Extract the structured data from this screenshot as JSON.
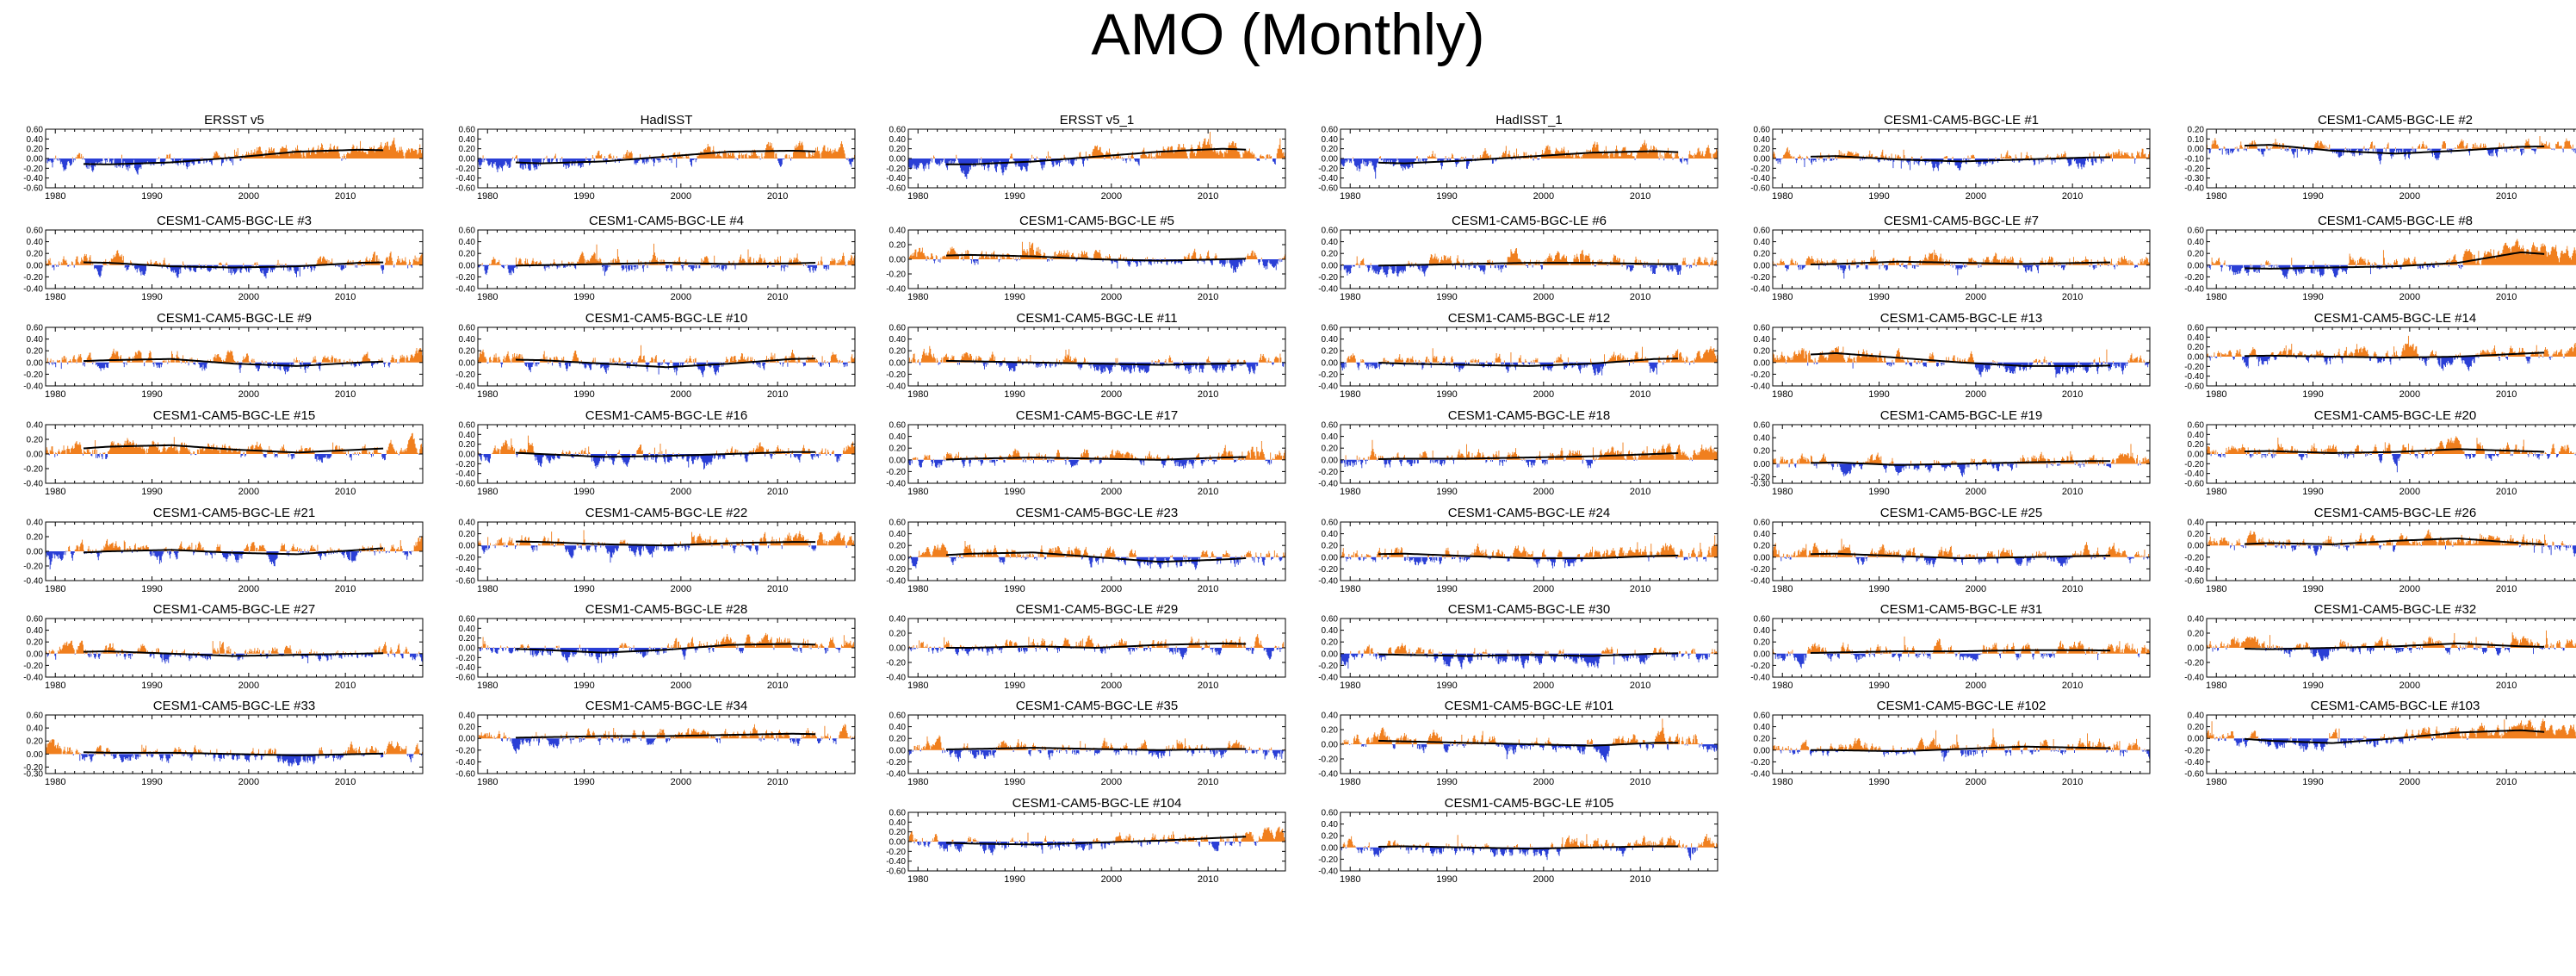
{
  "chart_data": {
    "type": "bar",
    "title": "AMO (Monthly)",
    "xlabel": "",
    "ylabel": "",
    "x_range": [
      1979,
      2018
    ],
    "x_ticks": [
      "1980",
      "1990",
      "2000",
      "2010"
    ],
    "colors": {
      "positive": "#f07f1e",
      "negative": "#2a3fd6",
      "smooth": "#000000"
    },
    "panels": [
      {
        "name": "ERSST v5",
        "seed": 1,
        "ylim": [
          -0.6,
          0.6
        ],
        "yticks": [
          "0.60",
          "0.40",
          "0.20",
          "0.00",
          "-0.20",
          "-0.40",
          "-0.60"
        ],
        "trend": [
          -0.1,
          -0.12,
          -0.08,
          0.02,
          0.14,
          0.18,
          0.15
        ]
      },
      {
        "name": "HadISST",
        "seed": 2,
        "ylim": [
          -0.6,
          0.6
        ],
        "yticks": [
          "0.60",
          "0.40",
          "0.20",
          "0.00",
          "-0.20",
          "-0.40",
          "-0.60"
        ],
        "trend": [
          -0.05,
          -0.1,
          -0.06,
          0.04,
          0.14,
          0.16,
          0.12
        ]
      },
      {
        "name": "ERSST v5_1",
        "seed": 3,
        "ylim": [
          -0.6,
          0.6
        ],
        "yticks": [
          "0.60",
          "0.40",
          "0.20",
          "0.00",
          "-0.20",
          "-0.40",
          "-0.60"
        ],
        "trend": [
          -0.12,
          -0.12,
          -0.06,
          0.04,
          0.14,
          0.2,
          0.15
        ]
      },
      {
        "name": "HadISST_1",
        "seed": 4,
        "ylim": [
          -0.6,
          0.6
        ],
        "yticks": [
          "0.60",
          "0.40",
          "0.20",
          "0.00",
          "-0.20",
          "-0.40",
          "-0.60"
        ],
        "trend": [
          -0.06,
          -0.1,
          -0.04,
          0.04,
          0.12,
          0.15,
          0.1
        ]
      },
      {
        "name": "CESM1-CAM5-BGC-LE #1",
        "seed": 5,
        "ylim": [
          -0.6,
          0.6
        ],
        "yticks": [
          "0.60",
          "0.40",
          "0.20",
          "0.00",
          "-0.20",
          "-0.40",
          "-0.60"
        ],
        "trend": [
          0.02,
          0.05,
          -0.02,
          -0.06,
          -0.02,
          0.02,
          0.04
        ]
      },
      {
        "name": "CESM1-CAM5-BGC-LE #2",
        "seed": 6,
        "ylim": [
          -0.4,
          0.2
        ],
        "yticks": [
          "0.20",
          "0.10",
          "0.00",
          "-0.10",
          "-0.20",
          "-0.30",
          "-0.40"
        ],
        "trend": [
          0.02,
          0.04,
          -0.02,
          -0.05,
          -0.02,
          0.02,
          0.03
        ]
      },
      {
        "name": "CESM1-CAM5-BGC-LE #3",
        "seed": 7,
        "ylim": [
          -0.4,
          0.6
        ],
        "yticks": [
          "0.60",
          "0.40",
          "0.20",
          "0.00",
          "-0.20",
          "-0.40"
        ],
        "trend": [
          0.06,
          0.04,
          -0.02,
          -0.04,
          -0.02,
          0.04,
          0.06
        ]
      },
      {
        "name": "CESM1-CAM5-BGC-LE #4",
        "seed": 8,
        "ylim": [
          -0.4,
          0.6
        ],
        "yticks": [
          "0.60",
          "0.40",
          "0.20",
          "0.00",
          "-0.20",
          "-0.40"
        ],
        "trend": [
          -0.02,
          0.0,
          0.02,
          0.04,
          0.02,
          0.03,
          0.06
        ]
      },
      {
        "name": "CESM1-CAM5-BGC-LE #5",
        "seed": 9,
        "ylim": [
          -0.4,
          0.4
        ],
        "yticks": [
          "0.40",
          "0.20",
          "0.00",
          "-0.20",
          "-0.40"
        ],
        "trend": [
          0.04,
          0.06,
          0.04,
          0.0,
          -0.02,
          0.0,
          0.02
        ]
      },
      {
        "name": "CESM1-CAM5-BGC-LE #6",
        "seed": 10,
        "ylim": [
          -0.4,
          0.6
        ],
        "yticks": [
          "0.60",
          "0.40",
          "0.20",
          "0.00",
          "-0.20",
          "-0.40"
        ],
        "trend": [
          -0.02,
          0.0,
          0.02,
          0.04,
          0.04,
          0.02,
          0.02
        ]
      },
      {
        "name": "CESM1-CAM5-BGC-LE #7",
        "seed": 11,
        "ylim": [
          -0.4,
          0.6
        ],
        "yticks": [
          "0.60",
          "0.40",
          "0.20",
          "0.00",
          "-0.20",
          "-0.40"
        ],
        "trend": [
          0.0,
          0.02,
          0.06,
          0.04,
          0.02,
          0.04,
          0.06
        ]
      },
      {
        "name": "CESM1-CAM5-BGC-LE #8",
        "seed": 12,
        "ylim": [
          -0.4,
          0.6
        ],
        "yticks": [
          "0.60",
          "0.40",
          "0.20",
          "0.00",
          "-0.20",
          "-0.40"
        ],
        "trend": [
          -0.04,
          -0.06,
          -0.04,
          -0.02,
          0.04,
          0.22,
          0.14
        ]
      },
      {
        "name": "CESM1-CAM5-BGC-LE #9",
        "seed": 13,
        "ylim": [
          -0.4,
          0.6
        ],
        "yticks": [
          "0.60",
          "0.40",
          "0.20",
          "0.00",
          "-0.20",
          "-0.40"
        ],
        "trend": [
          0.0,
          0.04,
          0.06,
          -0.02,
          -0.06,
          0.0,
          0.04
        ]
      },
      {
        "name": "CESM1-CAM5-BGC-LE #10",
        "seed": 14,
        "ylim": [
          -0.4,
          0.6
        ],
        "yticks": [
          "0.60",
          "0.40",
          "0.20",
          "0.00",
          "-0.20",
          "-0.40"
        ],
        "trend": [
          0.06,
          0.04,
          -0.02,
          -0.08,
          -0.02,
          0.06,
          0.08
        ]
      },
      {
        "name": "CESM1-CAM5-BGC-LE #11",
        "seed": 15,
        "ylim": [
          -0.4,
          0.6
        ],
        "yticks": [
          "0.60",
          "0.40",
          "0.20",
          "0.00",
          "-0.20",
          "-0.40"
        ],
        "trend": [
          0.04,
          0.02,
          0.0,
          -0.02,
          -0.04,
          -0.02,
          0.0
        ]
      },
      {
        "name": "CESM1-CAM5-BGC-LE #12",
        "seed": 16,
        "ylim": [
          -0.4,
          0.6
        ],
        "yticks": [
          "0.60",
          "0.40",
          "0.20",
          "0.00",
          "-0.20",
          "-0.40"
        ],
        "trend": [
          0.02,
          -0.02,
          -0.04,
          -0.06,
          -0.02,
          0.06,
          0.08
        ]
      },
      {
        "name": "CESM1-CAM5-BGC-LE #13",
        "seed": 17,
        "ylim": [
          -0.4,
          0.6
        ],
        "yticks": [
          "0.60",
          "0.40",
          "0.20",
          "0.00",
          "-0.20",
          "-0.40"
        ],
        "trend": [
          0.1,
          0.16,
          0.08,
          0.0,
          -0.06,
          -0.06,
          -0.04
        ]
      },
      {
        "name": "CESM1-CAM5-BGC-LE #14",
        "seed": 18,
        "ylim": [
          -0.6,
          0.6
        ],
        "yticks": [
          "0.60",
          "0.40",
          "0.20",
          "0.00",
          "-0.20",
          "-0.40",
          "-0.60"
        ],
        "trend": [
          0.0,
          0.02,
          0.0,
          -0.02,
          0.0,
          0.06,
          0.12
        ]
      },
      {
        "name": "CESM1-CAM5-BGC-LE #15",
        "seed": 19,
        "ylim": [
          -0.4,
          0.4
        ],
        "yticks": [
          "0.40",
          "0.20",
          "0.00",
          "-0.20",
          "-0.40"
        ],
        "trend": [
          0.04,
          0.1,
          0.12,
          0.06,
          0.02,
          0.06,
          0.1
        ]
      },
      {
        "name": "CESM1-CAM5-BGC-LE #16",
        "seed": 20,
        "ylim": [
          -0.6,
          0.6
        ],
        "yticks": [
          "0.60",
          "0.40",
          "0.20",
          "0.00",
          "-0.20",
          "-0.40",
          "-0.60"
        ],
        "trend": [
          0.06,
          0.0,
          -0.06,
          -0.04,
          0.0,
          0.04,
          0.04
        ]
      },
      {
        "name": "CESM1-CAM5-BGC-LE #17",
        "seed": 21,
        "ylim": [
          -0.4,
          0.6
        ],
        "yticks": [
          "0.60",
          "0.40",
          "0.20",
          "0.00",
          "-0.20",
          "-0.40"
        ],
        "trend": [
          -0.02,
          0.02,
          0.04,
          0.02,
          0.0,
          0.04,
          0.06
        ]
      },
      {
        "name": "CESM1-CAM5-BGC-LE #18",
        "seed": 22,
        "ylim": [
          -0.4,
          0.6
        ],
        "yticks": [
          "0.60",
          "0.40",
          "0.20",
          "0.00",
          "-0.20",
          "-0.40"
        ],
        "trend": [
          0.0,
          0.02,
          0.02,
          0.04,
          0.06,
          0.1,
          0.14
        ]
      },
      {
        "name": "CESM1-CAM5-BGC-LE #19",
        "seed": 23,
        "ylim": [
          -0.3,
          0.6
        ],
        "yticks": [
          "0.60",
          "0.40",
          "0.20",
          "0.00",
          "-0.20",
          "-0.30"
        ],
        "trend": [
          0.0,
          0.02,
          -0.02,
          0.0,
          0.02,
          0.04,
          0.04
        ]
      },
      {
        "name": "CESM1-CAM5-BGC-LE #20",
        "seed": 24,
        "ylim": [
          -0.6,
          0.6
        ],
        "yticks": [
          "0.60",
          "0.40",
          "0.20",
          "0.00",
          "-0.20",
          "-0.40",
          "-0.60"
        ],
        "trend": [
          0.04,
          0.06,
          0.02,
          0.04,
          0.1,
          0.06,
          0.02
        ]
      },
      {
        "name": "CESM1-CAM5-BGC-LE #21",
        "seed": 25,
        "ylim": [
          -0.4,
          0.4
        ],
        "yticks": [
          "0.40",
          "0.20",
          "0.00",
          "-0.20",
          "-0.40"
        ],
        "trend": [
          -0.04,
          0.0,
          0.02,
          -0.02,
          -0.04,
          0.02,
          0.08
        ]
      },
      {
        "name": "CESM1-CAM5-BGC-LE #22",
        "seed": 26,
        "ylim": [
          -0.6,
          0.4
        ],
        "yticks": [
          "0.40",
          "0.20",
          "0.00",
          "-0.20",
          "-0.40",
          "-0.60"
        ],
        "trend": [
          0.08,
          0.06,
          0.02,
          0.0,
          0.04,
          0.06,
          0.06
        ]
      },
      {
        "name": "CESM1-CAM5-BGC-LE #23",
        "seed": 27,
        "ylim": [
          -0.4,
          0.6
        ],
        "yticks": [
          "0.60",
          "0.40",
          "0.20",
          "0.00",
          "-0.20",
          "-0.40"
        ],
        "trend": [
          0.0,
          0.06,
          0.08,
          0.0,
          -0.08,
          -0.04,
          0.02
        ]
      },
      {
        "name": "CESM1-CAM5-BGC-LE #24",
        "seed": 28,
        "ylim": [
          -0.4,
          0.6
        ],
        "yticks": [
          "0.60",
          "0.40",
          "0.20",
          "0.00",
          "-0.20",
          "-0.40"
        ],
        "trend": [
          0.04,
          0.06,
          0.02,
          -0.02,
          -0.02,
          0.02,
          0.04
        ]
      },
      {
        "name": "CESM1-CAM5-BGC-LE #25",
        "seed": 29,
        "ylim": [
          -0.4,
          0.6
        ],
        "yticks": [
          "0.60",
          "0.40",
          "0.20",
          "0.00",
          "-0.20",
          "-0.40"
        ],
        "trend": [
          0.04,
          0.06,
          0.02,
          -0.02,
          0.0,
          0.02,
          0.04
        ]
      },
      {
        "name": "CESM1-CAM5-BGC-LE #26",
        "seed": 30,
        "ylim": [
          -0.6,
          0.4
        ],
        "yticks": [
          "0.40",
          "0.20",
          "0.00",
          "-0.20",
          "-0.40",
          "-0.60"
        ],
        "trend": [
          0.0,
          0.04,
          0.02,
          0.08,
          0.12,
          0.04,
          -0.02
        ]
      },
      {
        "name": "CESM1-CAM5-BGC-LE #27",
        "seed": 31,
        "ylim": [
          -0.4,
          0.6
        ],
        "yticks": [
          "0.60",
          "0.40",
          "0.20",
          "0.00",
          "-0.20",
          "-0.40"
        ],
        "trend": [
          0.02,
          0.04,
          0.0,
          -0.04,
          -0.02,
          0.0,
          0.02
        ]
      },
      {
        "name": "CESM1-CAM5-BGC-LE #28",
        "seed": 32,
        "ylim": [
          -0.6,
          0.6
        ],
        "yticks": [
          "0.60",
          "0.40",
          "0.20",
          "0.00",
          "-0.20",
          "-0.40",
          "-0.60"
        ],
        "trend": [
          0.0,
          -0.04,
          -0.1,
          -0.04,
          0.06,
          0.08,
          0.04
        ]
      },
      {
        "name": "CESM1-CAM5-BGC-LE #29",
        "seed": 33,
        "ylim": [
          -0.4,
          0.4
        ],
        "yticks": [
          "0.40",
          "0.20",
          "0.00",
          "-0.20",
          "-0.40"
        ],
        "trend": [
          0.0,
          0.0,
          0.02,
          0.0,
          0.04,
          0.06,
          0.04
        ]
      },
      {
        "name": "CESM1-CAM5-BGC-LE #30",
        "seed": 34,
        "ylim": [
          -0.4,
          0.6
        ],
        "yticks": [
          "0.60",
          "0.40",
          "0.20",
          "0.00",
          "-0.20",
          "-0.40"
        ],
        "trend": [
          0.0,
          -0.02,
          -0.04,
          -0.02,
          -0.04,
          0.0,
          0.02
        ]
      },
      {
        "name": "CESM1-CAM5-BGC-LE #31",
        "seed": 35,
        "ylim": [
          -0.4,
          0.6
        ],
        "yticks": [
          "0.60",
          "0.40",
          "0.20",
          "0.00",
          "-0.20",
          "-0.40"
        ],
        "trend": [
          0.0,
          0.02,
          0.04,
          0.04,
          0.06,
          0.06,
          0.04
        ]
      },
      {
        "name": "CESM1-CAM5-BGC-LE #32",
        "seed": 36,
        "ylim": [
          -0.4,
          0.4
        ],
        "yticks": [
          "0.40",
          "0.20",
          "0.00",
          "-0.20",
          "-0.40"
        ],
        "trend": [
          0.0,
          -0.02,
          0.0,
          0.02,
          0.06,
          0.02,
          0.0
        ]
      },
      {
        "name": "CESM1-CAM5-BGC-LE #33",
        "seed": 37,
        "ylim": [
          -0.3,
          0.6
        ],
        "yticks": [
          "0.60",
          "0.40",
          "0.20",
          "0.00",
          "-0.20",
          "-0.30"
        ],
        "trend": [
          0.04,
          0.02,
          0.02,
          0.0,
          -0.02,
          0.0,
          0.02
        ]
      },
      {
        "name": "CESM1-CAM5-BGC-LE #34",
        "seed": 38,
        "ylim": [
          -0.6,
          0.4
        ],
        "yticks": [
          "0.40",
          "0.20",
          "0.00",
          "-0.20",
          "-0.40",
          "-0.60"
        ],
        "trend": [
          0.0,
          0.02,
          0.04,
          0.04,
          0.06,
          0.08,
          0.06
        ]
      },
      {
        "name": "CESM1-CAM5-BGC-LE #35",
        "seed": 39,
        "ylim": [
          -0.4,
          0.6
        ],
        "yticks": [
          "0.60",
          "0.40",
          "0.20",
          "0.00",
          "-0.20",
          "-0.40"
        ],
        "trend": [
          0.0,
          0.02,
          0.04,
          0.02,
          0.0,
          0.02,
          0.02
        ]
      },
      {
        "name": "CESM1-CAM5-BGC-LE #101",
        "seed": 40,
        "ylim": [
          -0.4,
          0.4
        ],
        "yticks": [
          "0.40",
          "0.20",
          "0.00",
          "-0.20",
          "-0.40"
        ],
        "trend": [
          0.06,
          0.04,
          0.02,
          0.0,
          -0.02,
          0.02,
          0.02
        ]
      },
      {
        "name": "CESM1-CAM5-BGC-LE #102",
        "seed": 41,
        "ylim": [
          -0.4,
          0.6
        ],
        "yticks": [
          "0.60",
          "0.40",
          "0.20",
          "0.00",
          "-0.20",
          "-0.40"
        ],
        "trend": [
          0.0,
          0.0,
          -0.02,
          0.02,
          0.06,
          0.04,
          0.02
        ]
      },
      {
        "name": "CESM1-CAM5-BGC-LE #103",
        "seed": 42,
        "ylim": [
          -0.6,
          0.4
        ],
        "yticks": [
          "0.40",
          "0.20",
          "0.00",
          "-0.20",
          "-0.40",
          "-0.60"
        ],
        "trend": [
          0.04,
          -0.04,
          -0.08,
          0.0,
          0.1,
          0.14,
          0.06
        ]
      },
      {
        "name": "CESM1-CAM5-BGC-LE #104",
        "seed": 43,
        "ylim": [
          -0.6,
          0.6
        ],
        "yticks": [
          "0.60",
          "0.40",
          "0.20",
          "0.00",
          "-0.20",
          "-0.40",
          "-0.60"
        ],
        "trend": [
          0.0,
          -0.04,
          -0.06,
          -0.02,
          0.02,
          0.08,
          0.14
        ]
      },
      {
        "name": "CESM1-CAM5-BGC-LE #105",
        "seed": 44,
        "ylim": [
          -0.4,
          0.6
        ],
        "yticks": [
          "0.60",
          "0.40",
          "0.20",
          "0.00",
          "-0.20",
          "-0.40"
        ],
        "trend": [
          0.0,
          0.02,
          0.0,
          -0.02,
          0.0,
          0.02,
          0.02
        ]
      }
    ]
  }
}
